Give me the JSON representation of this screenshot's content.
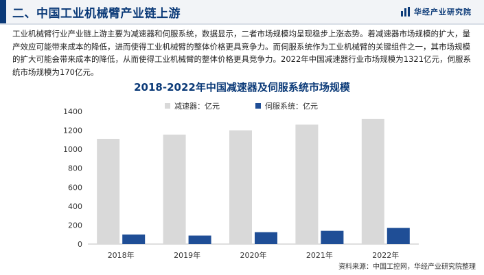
{
  "header": {
    "title": "二、中国工业机械臂产业链上游",
    "brand": "华经产业研究院"
  },
  "paragraph": "工业机械臂行业产业链上游主要为减速器和伺服系统，数据显示，二者市场规模均呈现稳步上涨态势。着减速器市场规模的扩大，量产效应可能带来成本的降低，进而使得工业机械臂的整体价格更具竞争力。而伺服系统作为工业机械臂的关键组件之一，其市场规模的扩大可能会带来成本的降低，从而使得工业机械臂的整体价格更具竞争力。2022年中国减速器行业市场规模为1321亿元，伺服系统市场规模为170亿元。",
  "chart_data": {
    "type": "bar",
    "title": "2018-2022年中国减速器及伺服系统市场规模",
    "categories": [
      "2018年",
      "2019年",
      "2020年",
      "2021年",
      "2022年"
    ],
    "series": [
      {
        "name": "减速器：亿元",
        "color": "#d9d9d9",
        "values": [
          1110,
          1155,
          1200,
          1260,
          1321
        ]
      },
      {
        "name": "伺服系统：亿元",
        "color": "#1f4e96",
        "values": [
          100,
          90,
          125,
          140,
          170
        ]
      }
    ],
    "ylim": [
      0,
      1400
    ],
    "yticks": [
      0,
      200,
      400,
      600,
      800,
      1000,
      1200,
      1400
    ],
    "grid": false,
    "legend_position": "top-center"
  },
  "source": "资料来源：中国工控网，华经产业研究院整理"
}
